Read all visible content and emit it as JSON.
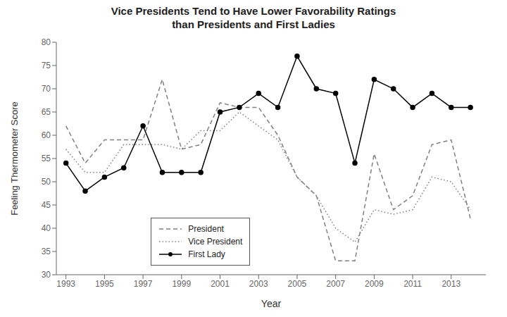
{
  "chart_data": {
    "type": "line",
    "title": "Vice Presidents Tend to Have Lower Favorability Ratings\nthan Presidents and First Ladies",
    "x_label": "Year",
    "y_label": "Feeling Thermometer Score",
    "x": [
      1993,
      1994,
      1995,
      1996,
      1997,
      1998,
      1999,
      2000,
      2001,
      2002,
      2003,
      2004,
      2005,
      2006,
      2007,
      2008,
      2009,
      2010,
      2011,
      2012,
      2013,
      2014
    ],
    "series": [
      {
        "name": "President",
        "color": "#808080",
        "line_style": "dashed",
        "marker": "none",
        "values": [
          62,
          54,
          59,
          59,
          59,
          72,
          57,
          58,
          67,
          66,
          66,
          60,
          51,
          47,
          33,
          33,
          56,
          44,
          47,
          58,
          59,
          42
        ]
      },
      {
        "name": "Vice President",
        "color": "#808080",
        "line_style": "dotted",
        "marker": "none",
        "values": [
          57,
          52,
          52,
          58,
          58,
          58,
          57,
          61,
          61,
          65,
          62,
          59,
          51,
          47,
          40,
          37,
          44,
          43,
          44,
          51,
          50,
          44
        ]
      },
      {
        "name": "First Lady",
        "color": "#000000",
        "line_style": "solid",
        "marker": "circle",
        "values": [
          54,
          48,
          51,
          53,
          62,
          52,
          52,
          52,
          65,
          66,
          69,
          66,
          77,
          70,
          69,
          54,
          72,
          70,
          66,
          69,
          66,
          66
        ]
      }
    ],
    "xlim": [
      1992.5,
      2014.8
    ],
    "xticks": [
      1993,
      1995,
      1997,
      1999,
      2001,
      2003,
      2005,
      2007,
      2009,
      2011,
      2013
    ],
    "ylim": [
      30,
      80
    ],
    "yticks": [
      30,
      35,
      40,
      45,
      50,
      55,
      60,
      65,
      70,
      75,
      80
    ],
    "grid": false,
    "legend": "lower left"
  }
}
